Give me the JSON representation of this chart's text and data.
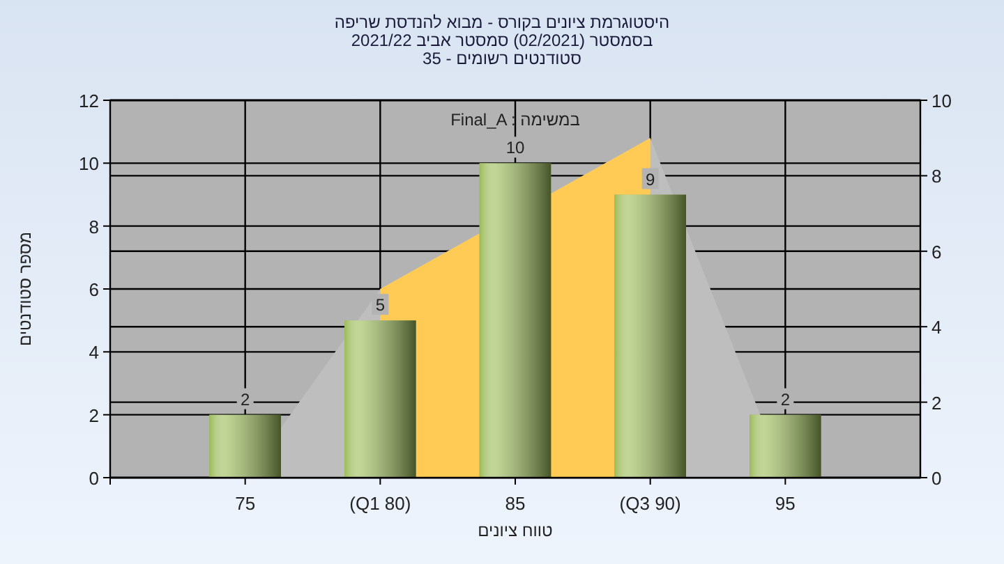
{
  "chart_data": {
    "type": "bar",
    "title": "היסטוגרמת ציונים בקורס - מבוא להנדסת שריפה",
    "subtitle": "בסמסטר (02/2021) סמסטר אביב 2021/22\nסטודנטים רשומים - 35",
    "xlabel": "טווח ציונים",
    "ylabel": "מספר סטודנטים",
    "annotations": [
      "Final_A : במשימה"
    ],
    "categories": [
      "75",
      "(Q1 80)",
      "85",
      "(Q3 90)",
      "95"
    ],
    "series": [
      {
        "type": "area",
        "axis": "y2",
        "color": "#bebebe",
        "values": [
          0,
          5,
          null,
          9,
          0
        ]
      },
      {
        "type": "area",
        "axis": "y2",
        "color": "#ffcb55",
        "values": [
          null,
          5,
          null,
          9,
          null
        ]
      },
      {
        "color": "#9bbb59",
        "values": [
          2,
          5,
          10,
          9,
          2
        ],
        "value_labels": [
          "2",
          "5",
          "10",
          "9",
          "2"
        ]
      }
    ],
    "ylim": [
      0,
      12
    ],
    "yticks": [
      0,
      2,
      4,
      6,
      8,
      10,
      12
    ],
    "y2lim": [
      0,
      10
    ],
    "y2ticks": [
      0,
      2,
      4,
      6,
      8,
      10
    ],
    "grid": true
  }
}
